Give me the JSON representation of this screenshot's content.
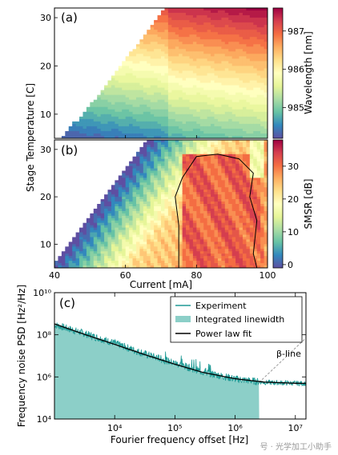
{
  "watermark": "号 · 光学加工小助手",
  "chart_data": [
    {
      "type": "heatmap",
      "panel_label": "(a)",
      "xlim": [
        40,
        100
      ],
      "ylim": [
        5,
        32
      ],
      "yticks": [
        10,
        20,
        30
      ],
      "ytick_labels": [
        "10",
        "20",
        "30"
      ],
      "colorbar": {
        "label": "Wavelength [nm]",
        "range": [
          984.2,
          987.6
        ],
        "ticks": [
          985,
          986,
          987
        ],
        "tick_labels": [
          "985",
          "986",
          "987"
        ],
        "colormap": "Spectral_r"
      }
    },
    {
      "type": "heatmap",
      "panel_label": "(b)",
      "xlim": [
        40,
        100
      ],
      "ylim": [
        5,
        32
      ],
      "xticks": [
        40,
        60,
        80,
        100
      ],
      "xtick_labels": [
        "40",
        "60",
        "80",
        "100"
      ],
      "yticks": [
        10,
        20,
        30
      ],
      "ytick_labels": [
        "10",
        "20",
        "30"
      ],
      "xlabel": "Current [mA]",
      "colorbar": {
        "label": "SMSR [dB]",
        "range": [
          -1,
          38
        ],
        "ticks": [
          0,
          10,
          20,
          30
        ],
        "tick_labels": [
          "0",
          "10",
          "20",
          "30"
        ],
        "colormap": "Spectral_r"
      }
    },
    {
      "type": "line",
      "panel_label": "(c)",
      "xscale": "log",
      "yscale": "log",
      "xlim": [
        1000,
        15000000
      ],
      "ylim": [
        10000,
        10000000000
      ],
      "xticks": [
        10000,
        100000,
        1000000,
        10000000
      ],
      "xtick_labels": [
        "10⁴",
        "10⁵",
        "10⁶",
        "10⁷"
      ],
      "yticks": [
        10000,
        1000000,
        100000000,
        10000000000
      ],
      "ytick_labels": [
        "10⁴",
        "10⁶",
        "10⁸",
        "10¹⁰"
      ],
      "xlabel": "Fourier frequency offset [Hz]",
      "ylabel": "Frequency noise PSD [Hz²/Hz]",
      "legend_position": "top-right",
      "legend": [
        "Experiment",
        "Integrated linewidth",
        "Power law fit"
      ],
      "annotation": "β-line",
      "series": [
        {
          "name": "Power law fit",
          "x": [
            1000,
            3000,
            10000,
            30000,
            100000,
            300000,
            1000000,
            3000000,
            10000000,
            15000000
          ],
          "y": [
            330000000,
            110000000,
            35000000,
            12000000,
            4000000,
            1600000,
            820000,
            570000,
            500000,
            490000
          ]
        },
        {
          "name": "Experiment",
          "x": [
            1000,
            3000,
            10000,
            30000,
            100000,
            300000,
            1000000,
            3000000,
            10000000,
            15000000
          ],
          "y": [
            300000000,
            120000000,
            40000000,
            13000000,
            4500000,
            1700000,
            800000,
            550000,
            500000,
            490000
          ]
        },
        {
          "name": "β-line",
          "x": [
            2500000,
            15000000
          ],
          "y": [
            550000,
            70000000
          ]
        }
      ]
    }
  ],
  "ylabel_shared": "Stage Temperature [C]"
}
